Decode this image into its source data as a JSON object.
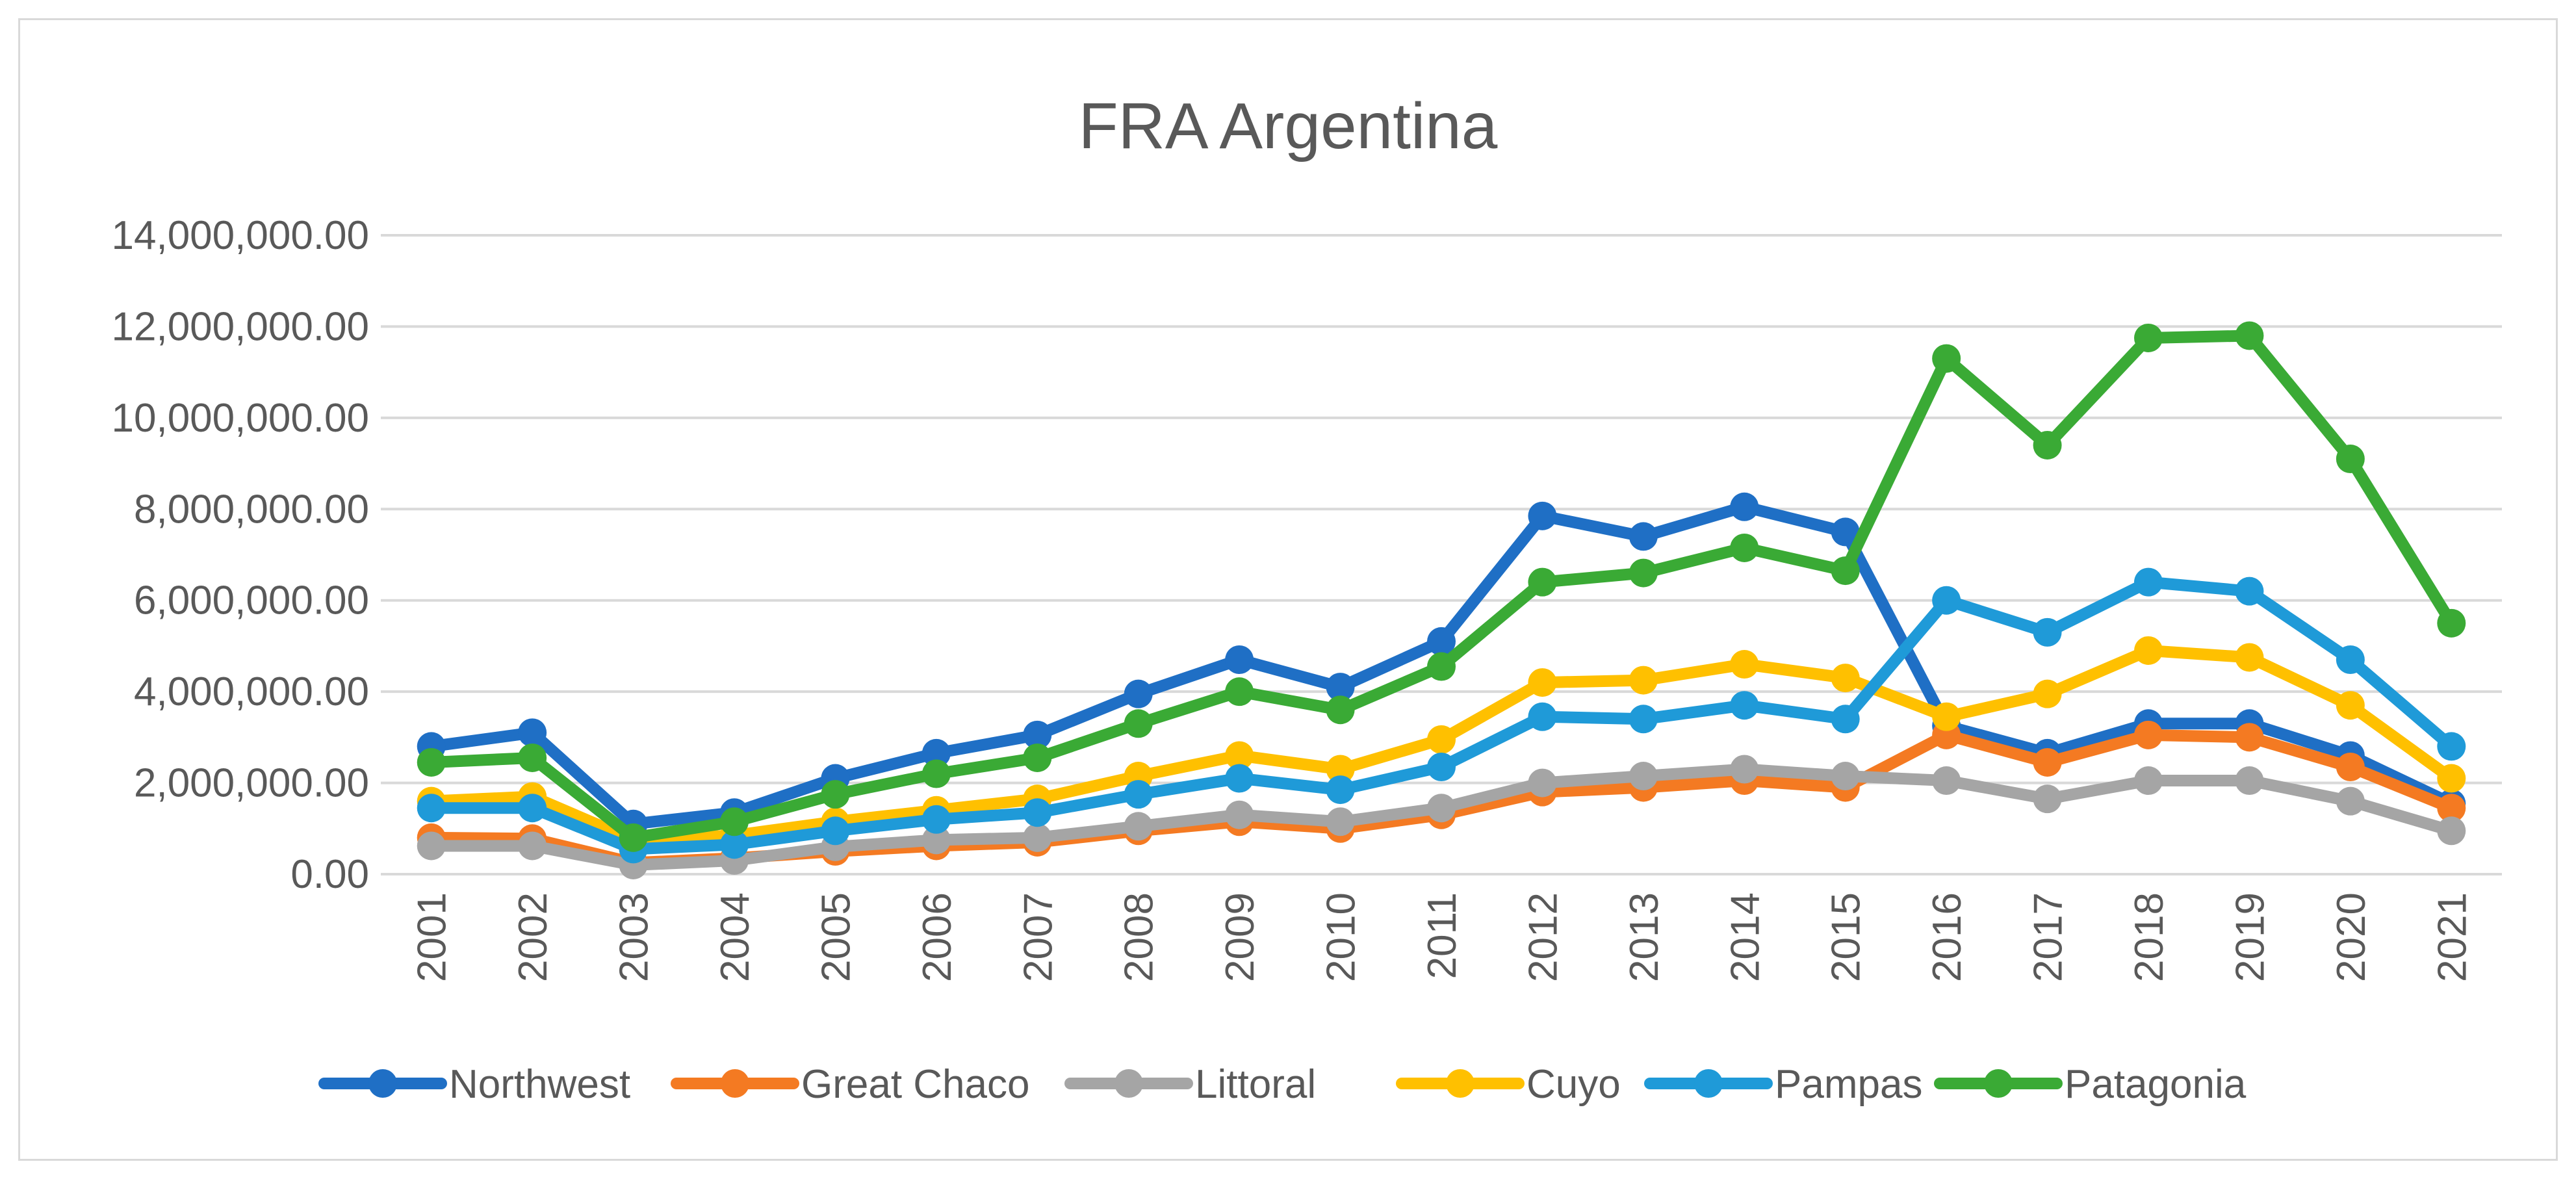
{
  "chart_data": {
    "type": "line",
    "title": "FRA Argentina",
    "xlabel": "",
    "ylabel": "",
    "x": [
      "2001",
      "2002",
      "2003",
      "2004",
      "2005",
      "2006",
      "2007",
      "2008",
      "2009",
      "2010",
      "2011",
      "2012",
      "2013",
      "2014",
      "2015",
      "2016",
      "2017",
      "2018",
      "2019",
      "2020",
      "2021"
    ],
    "ylim": [
      0,
      14000000
    ],
    "yticks": [
      0,
      2000000,
      4000000,
      6000000,
      8000000,
      10000000,
      12000000,
      14000000
    ],
    "ytick_labels": [
      "0.00",
      "2,000,000.00",
      "4,000,000.00",
      "6,000,000.00",
      "8,000,000.00",
      "10,000,000.00",
      "12,000,000.00",
      "14,000,000.00"
    ],
    "grid": true,
    "legend_position": "bottom",
    "series": [
      {
        "name": "Northwest",
        "color": "#1f6fc5",
        "values": [
          2800000,
          3100000,
          1100000,
          1350000,
          2100000,
          2650000,
          3050000,
          3950000,
          4700000,
          4100000,
          5100000,
          7850000,
          7400000,
          8050000,
          7500000,
          3250000,
          2650000,
          3300000,
          3300000,
          2600000,
          1550000
        ]
      },
      {
        "name": "Great Chaco",
        "color": "#f47a22",
        "values": [
          800000,
          780000,
          250000,
          350000,
          500000,
          620000,
          700000,
          950000,
          1150000,
          1000000,
          1300000,
          1800000,
          1900000,
          2050000,
          1900000,
          3050000,
          2450000,
          3050000,
          3000000,
          2350000,
          1450000
        ]
      },
      {
        "name": "Littoral",
        "color": "#a5a5a5",
        "values": [
          620000,
          620000,
          200000,
          300000,
          600000,
          750000,
          800000,
          1050000,
          1300000,
          1150000,
          1450000,
          2000000,
          2150000,
          2300000,
          2150000,
          2050000,
          1650000,
          2050000,
          2050000,
          1600000,
          950000
        ]
      },
      {
        "name": "Cuyo",
        "color": "#ffc000",
        "values": [
          1600000,
          1700000,
          750000,
          850000,
          1150000,
          1400000,
          1650000,
          2150000,
          2600000,
          2300000,
          2950000,
          4200000,
          4250000,
          4600000,
          4300000,
          3450000,
          3950000,
          4900000,
          4750000,
          3700000,
          2100000
        ]
      },
      {
        "name": "Pampas",
        "color": "#1f9ad8",
        "values": [
          1450000,
          1450000,
          550000,
          650000,
          950000,
          1200000,
          1350000,
          1750000,
          2100000,
          1850000,
          2350000,
          3450000,
          3400000,
          3700000,
          3400000,
          6000000,
          5300000,
          6400000,
          6200000,
          4700000,
          2800000
        ]
      },
      {
        "name": "Patagonia",
        "color": "#3aaa35",
        "values": [
          2450000,
          2550000,
          800000,
          1150000,
          1750000,
          2200000,
          2550000,
          3300000,
          4000000,
          3600000,
          4550000,
          6400000,
          6600000,
          7150000,
          6650000,
          11300000,
          9400000,
          11750000,
          11800000,
          9100000,
          5500000
        ]
      }
    ]
  }
}
